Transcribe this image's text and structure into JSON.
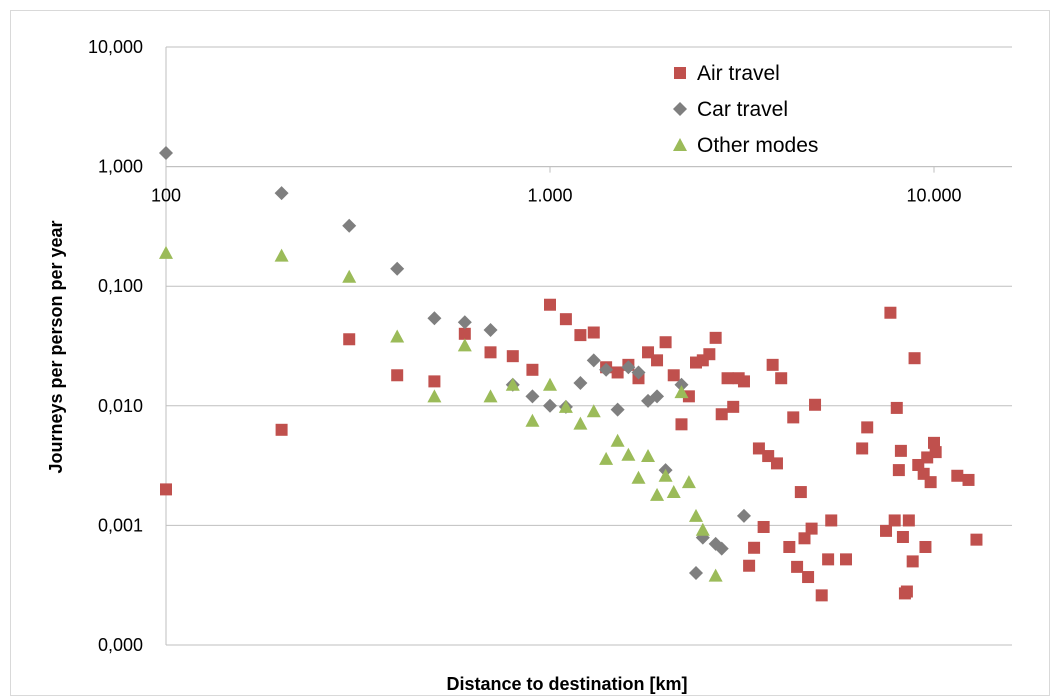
{
  "chart_data": {
    "type": "scatter",
    "title": "",
    "xlabel": "Distance to destination [km]",
    "ylabel": "Journeys per person per year",
    "x_scale": "log",
    "y_scale": "log",
    "xlim": [
      100,
      15000
    ],
    "ylim": [
      0.0001,
      10
    ],
    "x_ticks": [
      {
        "value": 100,
        "label": "100"
      },
      {
        "value": 1000,
        "label": "1.000"
      },
      {
        "value": 10000,
        "label": "10.000"
      }
    ],
    "y_ticks": [
      {
        "value": 10,
        "label": "10,000"
      },
      {
        "value": 1,
        "label": "1,000"
      },
      {
        "value": 0.1,
        "label": "0,100"
      },
      {
        "value": 0.01,
        "label": "0,010"
      },
      {
        "value": 0.001,
        "label": "0,001"
      },
      {
        "value": 0.0001,
        "label": "0,000"
      }
    ],
    "grid": "horizontal",
    "legend_position": "top-right",
    "series": [
      {
        "name": "Air travel",
        "marker": "square",
        "color": "#c0504d",
        "points": [
          [
            100,
            0.002
          ],
          [
            200,
            0.0063
          ],
          [
            300,
            0.036
          ],
          [
            400,
            0.018
          ],
          [
            500,
            0.016
          ],
          [
            600,
            0.04
          ],
          [
            700,
            0.028
          ],
          [
            800,
            0.026
          ],
          [
            900,
            0.02
          ],
          [
            1000,
            0.07
          ],
          [
            1100,
            0.053
          ],
          [
            1200,
            0.039
          ],
          [
            1300,
            0.041
          ],
          [
            1400,
            0.021
          ],
          [
            1500,
            0.019
          ],
          [
            1600,
            0.022
          ],
          [
            1700,
            0.017
          ],
          [
            1800,
            0.028
          ],
          [
            1900,
            0.024
          ],
          [
            2000,
            0.034
          ],
          [
            2100,
            0.018
          ],
          [
            2200,
            0.007
          ],
          [
            2300,
            0.012
          ],
          [
            2400,
            0.023
          ],
          [
            2500,
            0.024
          ],
          [
            2600,
            0.027
          ],
          [
            2700,
            0.037
          ],
          [
            2800,
            0.0085
          ],
          [
            2900,
            0.017
          ],
          [
            3000,
            0.0098
          ],
          [
            3100,
            0.017
          ],
          [
            3200,
            0.016
          ],
          [
            3300,
            0.00046
          ],
          [
            3400,
            0.00065
          ],
          [
            3500,
            0.0044
          ],
          [
            3600,
            0.00097
          ],
          [
            3700,
            0.0038
          ],
          [
            3800,
            0.022
          ],
          [
            3900,
            0.0033
          ],
          [
            4000,
            0.017
          ],
          [
            4200,
            0.00066
          ],
          [
            4300,
            0.008
          ],
          [
            4400,
            0.00045
          ],
          [
            4500,
            0.0019
          ],
          [
            4600,
            0.00078
          ],
          [
            4700,
            0.00037
          ],
          [
            4800,
            0.00094
          ],
          [
            4900,
            0.0102
          ],
          [
            5100,
            0.00026
          ],
          [
            5300,
            0.00052
          ],
          [
            5400,
            0.0011
          ],
          [
            5900,
            0.00052
          ],
          [
            6500,
            0.0044
          ],
          [
            6700,
            0.0066
          ],
          [
            7500,
            0.0009
          ],
          [
            7700,
            0.06
          ],
          [
            7900,
            0.0011
          ],
          [
            8000,
            0.0096
          ],
          [
            8100,
            0.0029
          ],
          [
            8200,
            0.0042
          ],
          [
            8300,
            0.0008
          ],
          [
            8400,
            0.00027
          ],
          [
            8500,
            0.00028
          ],
          [
            8600,
            0.0011
          ],
          [
            8800,
            0.0005
          ],
          [
            8900,
            0.025
          ],
          [
            9100,
            0.0032
          ],
          [
            9400,
            0.0027
          ],
          [
            9500,
            0.00066
          ],
          [
            9600,
            0.0037
          ],
          [
            9800,
            0.0023
          ],
          [
            10000,
            0.0049
          ],
          [
            10100,
            0.0041
          ],
          [
            11500,
            0.0026
          ],
          [
            12300,
            0.0024
          ],
          [
            12900,
            0.00076
          ]
        ]
      },
      {
        "name": "Car travel",
        "marker": "diamond",
        "color": "#7f7f7f",
        "points": [
          [
            100,
            1.3
          ],
          [
            200,
            0.6
          ],
          [
            300,
            0.32
          ],
          [
            400,
            0.14
          ],
          [
            500,
            0.054
          ],
          [
            600,
            0.05
          ],
          [
            700,
            0.043
          ],
          [
            800,
            0.015
          ],
          [
            900,
            0.012
          ],
          [
            1000,
            0.01
          ],
          [
            1100,
            0.0098
          ],
          [
            1200,
            0.0155
          ],
          [
            1300,
            0.024
          ],
          [
            1400,
            0.02
          ],
          [
            1500,
            0.0093
          ],
          [
            1600,
            0.021
          ],
          [
            1700,
            0.019
          ],
          [
            1800,
            0.011
          ],
          [
            1900,
            0.012
          ],
          [
            2000,
            0.0029
          ],
          [
            2200,
            0.015
          ],
          [
            2400,
            0.0004
          ],
          [
            2500,
            0.00079
          ],
          [
            2700,
            0.0007
          ],
          [
            2800,
            0.00064
          ],
          [
            3200,
            0.0012
          ]
        ]
      },
      {
        "name": "Other modes",
        "marker": "triangle",
        "color": "#9bbb59",
        "points": [
          [
            100,
            0.19
          ],
          [
            200,
            0.18
          ],
          [
            300,
            0.12
          ],
          [
            400,
            0.038
          ],
          [
            500,
            0.012
          ],
          [
            600,
            0.032
          ],
          [
            700,
            0.012
          ],
          [
            800,
            0.015
          ],
          [
            900,
            0.0075
          ],
          [
            1000,
            0.015
          ],
          [
            1100,
            0.0098
          ],
          [
            1200,
            0.0071
          ],
          [
            1300,
            0.009
          ],
          [
            1400,
            0.0036
          ],
          [
            1500,
            0.0051
          ],
          [
            1600,
            0.0039
          ],
          [
            1700,
            0.0025
          ],
          [
            1800,
            0.0038
          ],
          [
            1900,
            0.0018
          ],
          [
            2000,
            0.0026
          ],
          [
            2100,
            0.0019
          ],
          [
            2200,
            0.013
          ],
          [
            2300,
            0.0023
          ],
          [
            2400,
            0.0012
          ],
          [
            2500,
            0.00092
          ],
          [
            2700,
            0.00038
          ]
        ]
      }
    ]
  }
}
